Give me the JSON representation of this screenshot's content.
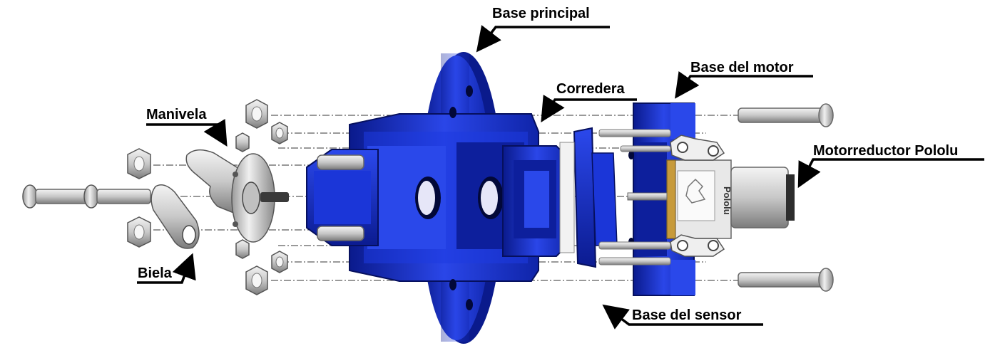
{
  "labels": {
    "base_principal": "Base principal",
    "corredera": "Corredera",
    "base_motor": "Base del motor",
    "manivela": "Manivela",
    "motorreductor": "Motorreductor Pololu",
    "biela": "Biela",
    "base_sensor": "Base del sensor"
  },
  "motor_brand": "Pololu",
  "colors": {
    "blue_part": "#1a35d6",
    "blue_dark": "#0a1a8c",
    "blue_light": "#3b5cff",
    "metal": "#d4d4d4",
    "metal_dark": "#8a8a8a"
  }
}
